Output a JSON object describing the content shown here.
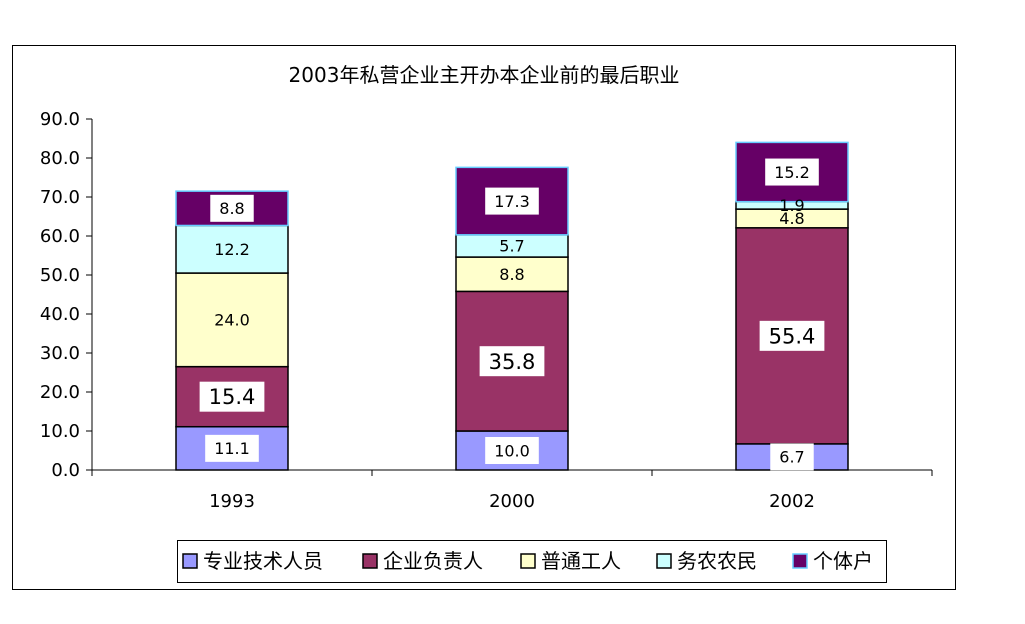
{
  "chart_data": {
    "type": "bar",
    "stacked": true,
    "title": "2003年私营企业主开办本企业前的最后职业",
    "xlabel": "",
    "ylabel": "",
    "categories": [
      "1993",
      "2000",
      "2002"
    ],
    "ylim": [
      0,
      90
    ],
    "ytick_labels": [
      "0.0",
      "10.0",
      "20.0",
      "30.0",
      "40.0",
      "50.0",
      "60.0",
      "70.0",
      "80.0",
      "90.0"
    ],
    "grid": false,
    "legend_position": "bottom",
    "data_labels": true,
    "series": [
      {
        "name": "专业技术人员",
        "values": [
          11.1,
          10.0,
          6.7
        ],
        "color": "#9999FF",
        "edgecolor": "#000000"
      },
      {
        "name": "企业负责人",
        "values": [
          15.4,
          35.8,
          55.4
        ],
        "color": "#993366",
        "edgecolor": "#000000"
      },
      {
        "name": "普通工人",
        "values": [
          24.0,
          8.8,
          4.8
        ],
        "color": "#FFFFCC",
        "edgecolor": "#000000"
      },
      {
        "name": "务农农民",
        "values": [
          12.2,
          5.7,
          1.9
        ],
        "color": "#CCFFFF",
        "edgecolor": "#000000"
      },
      {
        "name": "个体户",
        "values": [
          8.8,
          17.3,
          15.2
        ],
        "color": "#660066",
        "edgecolor": "#66CCFF"
      }
    ]
  }
}
